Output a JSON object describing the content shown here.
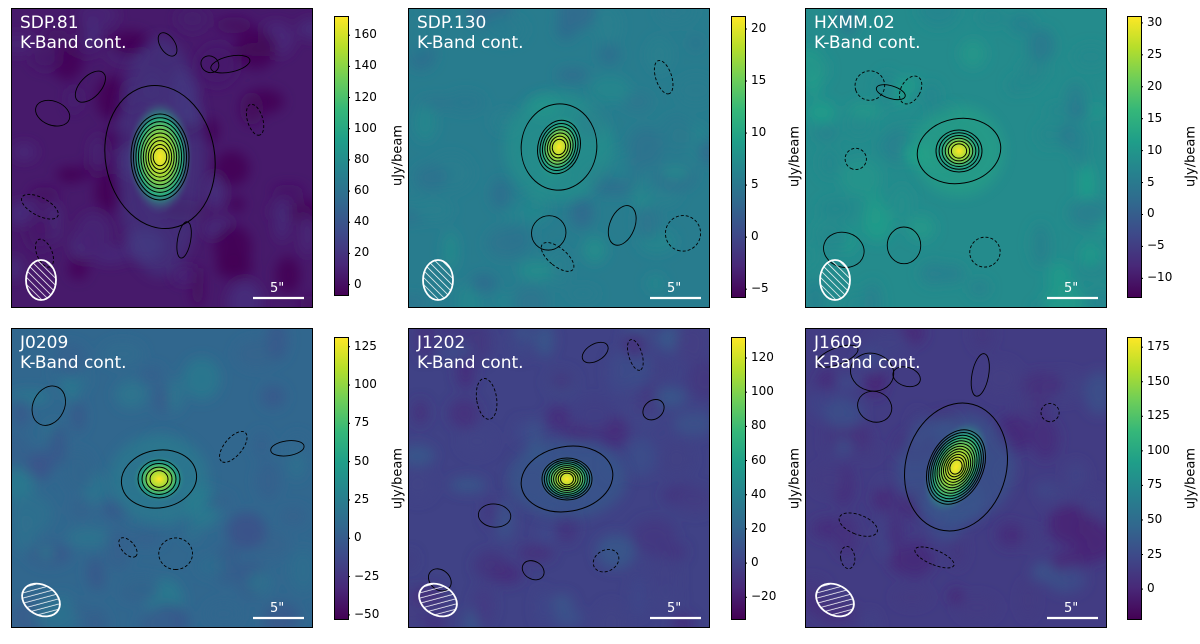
{
  "chart_data": [
    {
      "type": "heatmap",
      "title_line1": "SDP.81",
      "title_line2": "K-Band cont.",
      "scalebar_label": "5\"",
      "colorbar_label": "uJy/beam",
      "vmin": -7,
      "vmax": 172,
      "ticks": [
        0,
        20,
        40,
        60,
        80,
        100,
        120,
        140,
        160
      ],
      "source": {
        "x_frac": 0.49,
        "y_frac": 0.49,
        "peak": 165,
        "shape": "elongated vertical"
      }
    },
    {
      "type": "heatmap",
      "title_line1": "SDP.130",
      "title_line2": "K-Band cont.",
      "scalebar_label": "5\"",
      "colorbar_label": "uJy/beam",
      "vmin": -5.8,
      "vmax": 21.2,
      "ticks": [
        -5,
        0,
        5,
        10,
        15,
        20
      ],
      "source": {
        "x_frac": 0.5,
        "y_frac": 0.46,
        "peak": 20
      }
    },
    {
      "type": "heatmap",
      "title_line1": "HXMM.02",
      "title_line2": "K-Band cont.",
      "scalebar_label": "5\"",
      "colorbar_label": "uJy/beam",
      "vmin": -13,
      "vmax": 31,
      "ticks": [
        -10,
        -5,
        0,
        5,
        10,
        15,
        20,
        25,
        30
      ],
      "source": {
        "x_frac": 0.51,
        "y_frac": 0.47,
        "peak": 30
      }
    },
    {
      "type": "heatmap",
      "title_line1": "J0209",
      "title_line2": "K-Band cont.",
      "scalebar_label": "5\"",
      "colorbar_label": "uJy/beam",
      "vmin": -53,
      "vmax": 131,
      "ticks": [
        -50,
        -25,
        0,
        25,
        50,
        75,
        100,
        125
      ],
      "source": {
        "x_frac": 0.49,
        "y_frac": 0.5,
        "peak": 125
      }
    },
    {
      "type": "heatmap",
      "title_line1": "J1202",
      "title_line2": "K-Band cont.",
      "scalebar_label": "5\"",
      "colorbar_label": "uJy/beam",
      "vmin": -33,
      "vmax": 132,
      "ticks": [
        -20,
        0,
        20,
        40,
        60,
        80,
        100,
        120
      ],
      "source": {
        "x_frac": 0.53,
        "y_frac": 0.5,
        "peak": 125
      }
    },
    {
      "type": "heatmap",
      "title_line1": "J1609",
      "title_line2": "K-Band cont.",
      "scalebar_label": "5\"",
      "colorbar_label": "uJy/beam",
      "vmin": -22,
      "vmax": 182,
      "ticks": [
        0,
        25,
        50,
        75,
        100,
        125,
        150,
        175
      ],
      "source": {
        "x_frac": 0.5,
        "y_frac": 0.46,
        "peak": 175
      }
    }
  ]
}
